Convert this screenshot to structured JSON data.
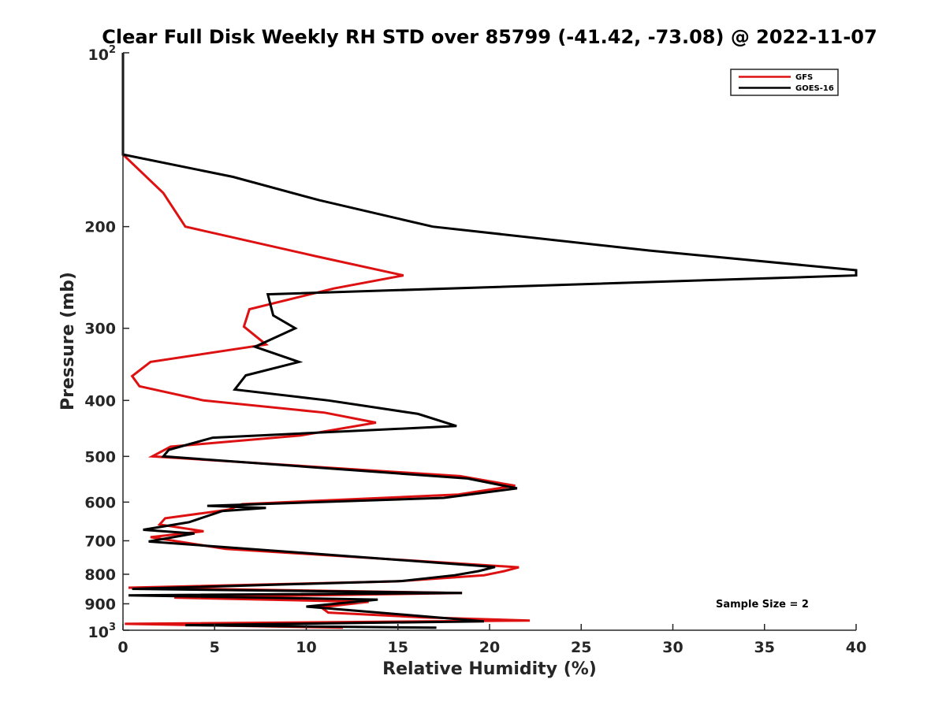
{
  "chart_data": {
    "type": "line",
    "title": "Clear Full Disk Weekly RH STD over 85799 (-41.42, -73.08) @ 2022-11-07",
    "xlabel": "Relative Humidity (%)",
    "ylabel": "Pressure (mb)",
    "xlim": [
      0,
      40
    ],
    "ylim": [
      100,
      1000
    ],
    "y_scale": "log",
    "y_reversed": true,
    "x_ticks": [
      "0",
      "5",
      "10",
      "15",
      "20",
      "25",
      "30",
      "35",
      "40"
    ],
    "y_ticks": [
      {
        "value": 100,
        "base": "10",
        "exp": "2"
      },
      {
        "value": 200,
        "label": "200"
      },
      {
        "value": 300,
        "label": "300"
      },
      {
        "value": 400,
        "label": "400"
      },
      {
        "value": 500,
        "label": "500"
      },
      {
        "value": 600,
        "label": "600"
      },
      {
        "value": 700,
        "label": "700"
      },
      {
        "value": 800,
        "label": "800"
      },
      {
        "value": 900,
        "label": "900"
      },
      {
        "value": 1000,
        "base": "10",
        "exp": "3"
      }
    ],
    "grid": false,
    "legend_position": "top-right",
    "annotation": "Sample Size = 2",
    "series": [
      {
        "name": "GFS",
        "color": "#dd1111",
        "points": [
          [
            0,
            100
          ],
          [
            0,
            150
          ],
          [
            2.2,
            175
          ],
          [
            3.4,
            200
          ],
          [
            10.5,
            225
          ],
          [
            15.3,
            243
          ],
          [
            11.5,
            256
          ],
          [
            6.9,
            278
          ],
          [
            6.6,
            298
          ],
          [
            7.8,
            320
          ],
          [
            1.5,
            343
          ],
          [
            0.5,
            363
          ],
          [
            0.9,
            378
          ],
          [
            4.4,
            400
          ],
          [
            11,
            420
          ],
          [
            13.8,
            437
          ],
          [
            9.7,
            460
          ],
          [
            2.6,
            481
          ],
          [
            1.6,
            500
          ],
          [
            18.4,
            541
          ],
          [
            21.4,
            562
          ],
          [
            18.3,
            582
          ],
          [
            6.5,
            605
          ],
          [
            5.8,
            618
          ],
          [
            2.3,
            640
          ],
          [
            2,
            656
          ],
          [
            4.4,
            674
          ],
          [
            1.5,
            690
          ],
          [
            5.6,
            723
          ],
          [
            21.6,
            778
          ],
          [
            20.8,
            790
          ],
          [
            19.7,
            803
          ],
          [
            14.9,
            823
          ],
          [
            0.3,
            844
          ],
          [
            18.5,
            862
          ],
          [
            2.8,
            878
          ],
          [
            13.4,
            893
          ],
          [
            10.8,
            912
          ],
          [
            11.2,
            932
          ],
          [
            16.4,
            950
          ],
          [
            22.2,
            962
          ],
          [
            0.1,
            975
          ],
          [
            12,
            990
          ]
        ]
      },
      {
        "name": "GOES-16",
        "color": "#000000",
        "points": [
          [
            0,
            100
          ],
          [
            0,
            150
          ],
          [
            6,
            164
          ],
          [
            10.7,
            180
          ],
          [
            16.9,
            200
          ],
          [
            28.7,
            220
          ],
          [
            40,
            238
          ],
          [
            40,
            243
          ],
          [
            7.9,
            262
          ],
          [
            8.2,
            285
          ],
          [
            9.4,
            300
          ],
          [
            7.2,
            323
          ],
          [
            9.6,
            343
          ],
          [
            6.7,
            362
          ],
          [
            6.1,
            383
          ],
          [
            11.2,
            400
          ],
          [
            16.1,
            422
          ],
          [
            18.2,
            443
          ],
          [
            4.9,
            464
          ],
          [
            2.5,
            487
          ],
          [
            2.2,
            500
          ],
          [
            18.8,
            546
          ],
          [
            21.5,
            568
          ],
          [
            17.5,
            590
          ],
          [
            4.6,
            609
          ],
          [
            7.8,
            614
          ],
          [
            5.4,
            622
          ],
          [
            3.6,
            650
          ],
          [
            1.1,
            670
          ],
          [
            3.9,
            680
          ],
          [
            1.4,
            702
          ],
          [
            20.3,
            777
          ],
          [
            19.4,
            790
          ],
          [
            18.1,
            803
          ],
          [
            15.2,
            822
          ],
          [
            0.5,
            848
          ],
          [
            18.5,
            862
          ],
          [
            0.3,
            870
          ],
          [
            13.9,
            885
          ],
          [
            10,
            910
          ],
          [
            19.7,
            965
          ],
          [
            3.4,
            980
          ],
          [
            17.1,
            990
          ]
        ]
      }
    ]
  }
}
